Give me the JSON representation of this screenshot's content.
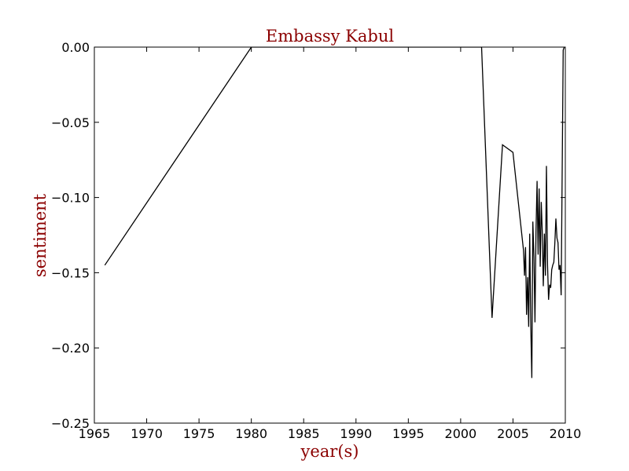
{
  "chart_data": {
    "type": "line",
    "title": "Embassy Kabul",
    "xlabel": "year(s)",
    "ylabel": "sentiment",
    "xlim": [
      1965,
      2010
    ],
    "ylim": [
      -0.25,
      0.0
    ],
    "xticks": [
      1965,
      1970,
      1975,
      1980,
      1985,
      1990,
      1995,
      2000,
      2005,
      2010
    ],
    "yticks": [
      0.0,
      -0.05,
      -0.1,
      -0.15,
      -0.2,
      -0.25
    ],
    "xtick_labels": [
      "1965",
      "1970",
      "1975",
      "1980",
      "1985",
      "1990",
      "1995",
      "2000",
      "2005",
      "2010"
    ],
    "ytick_labels": [
      "0.00",
      "−0.05",
      "−0.10",
      "−0.15",
      "−0.20",
      "−0.25"
    ],
    "grid": false,
    "legend": "none",
    "colors": {
      "line": "#000000",
      "title": "#8b0000",
      "axis_label": "#8b0000",
      "frame": "#000000"
    },
    "series": [
      {
        "x": [
          1966.0,
          1980.0,
          2002.0,
          2003.0,
          2004.0,
          2005.0,
          2006.0,
          2006.1,
          2006.2,
          2006.3,
          2006.4,
          2006.5,
          2006.6,
          2006.7,
          2006.8,
          2006.9,
          2007.0,
          2007.1,
          2007.2,
          2007.3,
          2007.4,
          2007.5,
          2007.6,
          2007.7,
          2007.8,
          2007.9,
          2008.0,
          2008.1,
          2008.2,
          2008.3,
          2008.4,
          2008.5,
          2008.6,
          2008.7,
          2008.8,
          2008.9,
          2009.0,
          2009.1,
          2009.2,
          2009.3,
          2009.4,
          2009.5,
          2009.6,
          2009.8,
          2009.9,
          2010.0
        ],
        "y": [
          -0.145,
          0.0,
          0.0,
          -0.18,
          -0.065,
          -0.07,
          -0.135,
          -0.152,
          -0.133,
          -0.178,
          -0.153,
          -0.186,
          -0.124,
          -0.186,
          -0.22,
          -0.116,
          -0.14,
          -0.183,
          -0.123,
          -0.089,
          -0.138,
          -0.094,
          -0.146,
          -0.103,
          -0.123,
          -0.159,
          -0.124,
          -0.152,
          -0.079,
          -0.145,
          -0.168,
          -0.158,
          -0.16,
          -0.148,
          -0.145,
          -0.143,
          -0.13,
          -0.114,
          -0.127,
          -0.13,
          -0.148,
          -0.145,
          -0.165,
          -0.002,
          0.0,
          0.0
        ]
      }
    ]
  }
}
